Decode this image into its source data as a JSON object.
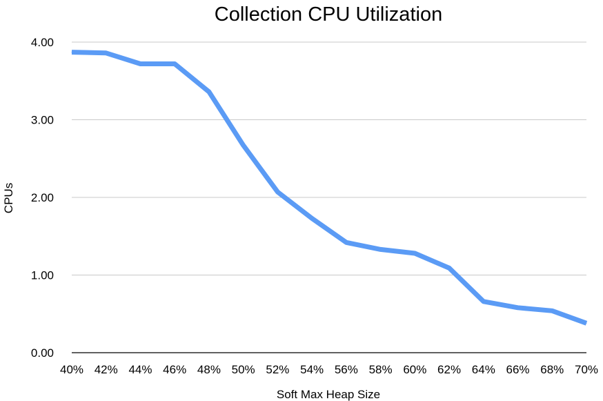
{
  "chart_data": {
    "type": "line",
    "title": "Collection CPU Utilization",
    "xlabel": "Soft Max Heap Size",
    "ylabel": "CPUs",
    "categories": [
      "40%",
      "42%",
      "44%",
      "46%",
      "48%",
      "50%",
      "52%",
      "54%",
      "56%",
      "58%",
      "60%",
      "62%",
      "64%",
      "66%",
      "68%",
      "70%"
    ],
    "series": [
      {
        "values": [
          3.87,
          3.86,
          3.72,
          3.72,
          3.36,
          2.67,
          2.07,
          1.73,
          1.42,
          1.33,
          1.28,
          1.09,
          0.66,
          0.58,
          0.54,
          0.38
        ]
      }
    ],
    "y_ticks": [
      "0.00",
      "1.00",
      "2.00",
      "3.00",
      "4.00"
    ],
    "ylim": [
      0,
      4
    ],
    "grid": true,
    "legend": "none",
    "colors": {
      "series": "#5b9bf5",
      "grid": "#c8c8c8",
      "axis": "#000000"
    }
  }
}
